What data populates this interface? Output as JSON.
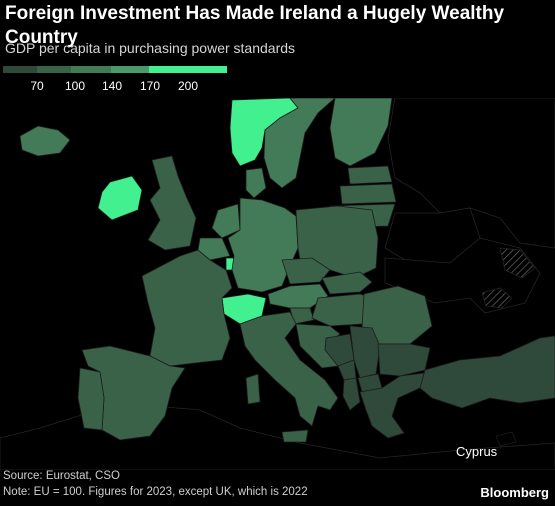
{
  "header": {
    "title": "Foreign Investment Has Made Ireland a Hugely Wealthy Country",
    "subtitle": "GDP per capita in purchasing power standards"
  },
  "legend": {
    "colors": [
      "#2f4a3b",
      "#3a6249",
      "#437b58",
      "#4c9a6a",
      "#42f08f"
    ],
    "ticks": [
      "70",
      "100",
      "140",
      "170",
      "200"
    ]
  },
  "map": {
    "annotation": "Cyprus",
    "countries": [
      {
        "name": "Ireland",
        "value": 212
      },
      {
        "name": "Luxembourg",
        "value": 240
      },
      {
        "name": "Switzerland",
        "value": 200
      },
      {
        "name": "Norway",
        "value": 200
      },
      {
        "name": "Netherlands",
        "value": 130
      },
      {
        "name": "Denmark",
        "value": 135
      },
      {
        "name": "Austria",
        "value": 123
      },
      {
        "name": "Belgium",
        "value": 119
      },
      {
        "name": "Sweden",
        "value": 113
      },
      {
        "name": "Germany",
        "value": 116
      },
      {
        "name": "Iceland",
        "value": 130
      },
      {
        "name": "Finland",
        "value": 107
      },
      {
        "name": "France",
        "value": 99
      },
      {
        "name": "UK",
        "value": 96
      },
      {
        "name": "Italy",
        "value": 97
      },
      {
        "name": "Spain",
        "value": 89
      },
      {
        "name": "Portugal",
        "value": 82
      },
      {
        "name": "Czechia",
        "value": 92
      },
      {
        "name": "Slovenia",
        "value": 91
      },
      {
        "name": "Lithuania",
        "value": 89
      },
      {
        "name": "Estonia",
        "value": 85
      },
      {
        "name": "Poland",
        "value": 80
      },
      {
        "name": "Hungary",
        "value": 77
      },
      {
        "name": "Croatia",
        "value": 76
      },
      {
        "name": "Romania",
        "value": 78
      },
      {
        "name": "Latvia",
        "value": 72
      },
      {
        "name": "Slovakia",
        "value": 73
      },
      {
        "name": "Greece",
        "value": 67
      },
      {
        "name": "Bulgaria",
        "value": 64
      },
      {
        "name": "Turkey",
        "value": 66
      },
      {
        "name": "Serbia",
        "value": 45
      },
      {
        "name": "Montenegro",
        "value": 50
      },
      {
        "name": "North Macedonia",
        "value": 42
      },
      {
        "name": "Albania",
        "value": 36
      },
      {
        "name": "Bosnia and Herzegovina",
        "value": 35
      }
    ]
  },
  "footer": {
    "source": "Source: Eurostat, CSO",
    "note": "Note: EU = 100. Figures for 2023, except UK, which is 2022",
    "brand": "Bloomberg"
  }
}
